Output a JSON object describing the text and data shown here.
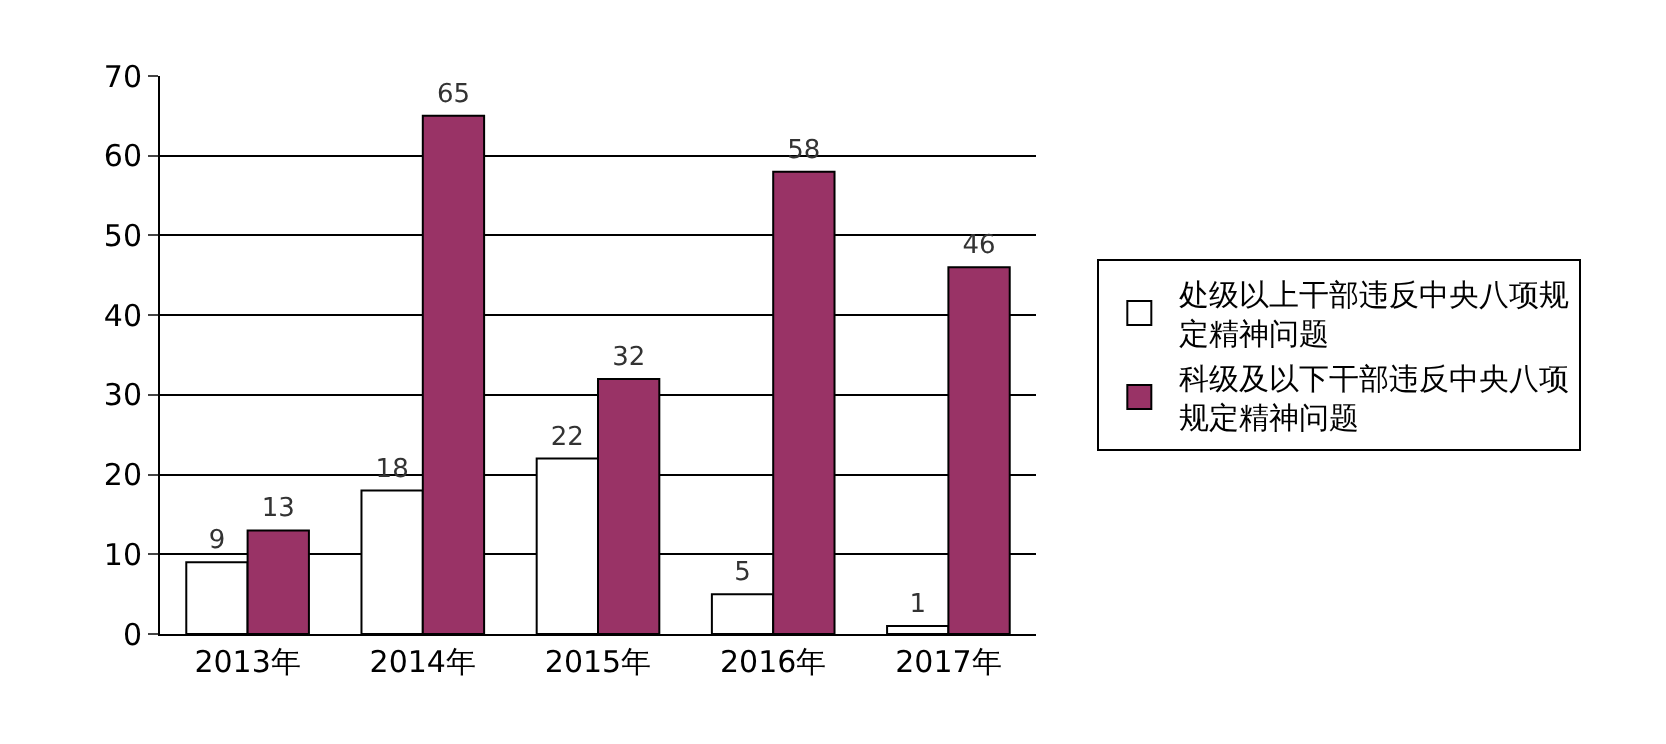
{
  "chart_data": {
    "type": "bar",
    "categories": [
      "2013年",
      "2014年",
      "2015年",
      "2016年",
      "2017年"
    ],
    "series": [
      {
        "name": "处级以上干部违反中央八项规定精神问题",
        "color": "#ffffff",
        "values": [
          9,
          18,
          22,
          5,
          1
        ]
      },
      {
        "name": "科级及以下干部违反中央八项规定精神问题",
        "color": "#993366",
        "values": [
          13,
          65,
          32,
          58,
          46
        ]
      }
    ],
    "ylim": [
      0,
      70
    ],
    "yticks": [
      0,
      10,
      20,
      30,
      40,
      50,
      60,
      70
    ],
    "grid": "y",
    "legend": "right",
    "data_labels": true
  }
}
